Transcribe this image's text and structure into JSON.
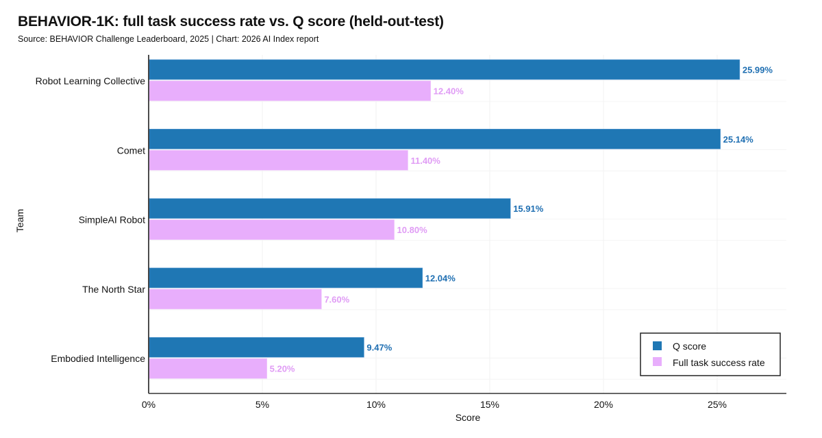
{
  "chart_data": {
    "type": "bar",
    "orientation": "horizontal",
    "title": "BEHAVIOR-1K: full task success rate vs. Q score (held-out-test)",
    "subtitle": "Source: BEHAVIOR Challenge Leaderboard, 2025 | Chart: 2026 AI Index report",
    "xlabel": "Score",
    "ylabel": "Team",
    "xlim": [
      0,
      28
    ],
    "x_ticks": [
      0,
      5,
      10,
      15,
      20,
      25
    ],
    "x_tick_labels": [
      "0%",
      "5%",
      "10%",
      "15%",
      "20%",
      "25%"
    ],
    "grid": "vertical",
    "categories": [
      "Robot Learning Collective",
      "Comet",
      "SimpleAI Robot",
      "The North Star",
      "Embodied Intelligence"
    ],
    "series": [
      {
        "name": "Q score",
        "color": "#1f77b4",
        "label_color": "#1f6fb2",
        "values": [
          25.99,
          25.14,
          15.91,
          12.04,
          9.47
        ],
        "labels": [
          "25.99%",
          "25.14%",
          "15.91%",
          "12.04%",
          "9.47%"
        ]
      },
      {
        "name": "Full task success rate",
        "color": "#e8aefc",
        "label_color": "#e09cf5",
        "values": [
          12.4,
          11.4,
          10.8,
          7.6,
          5.2
        ],
        "labels": [
          "12.40%",
          "11.40%",
          "10.80%",
          "7.60%",
          "5.20%"
        ]
      }
    ],
    "legend_position": "bottom-right"
  }
}
